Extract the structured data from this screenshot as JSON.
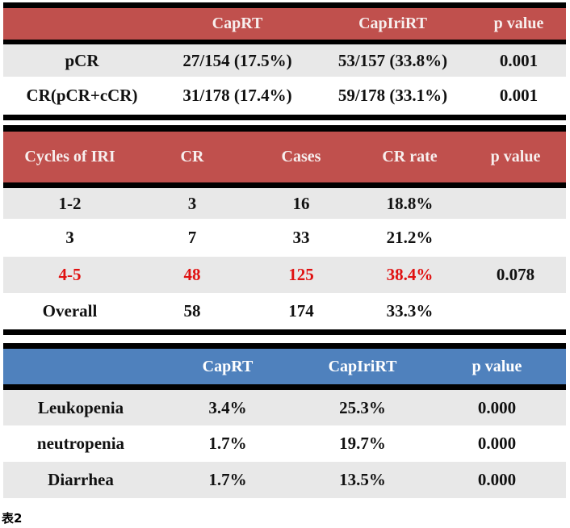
{
  "page": {
    "caption": "表2"
  },
  "colors": {
    "red-header-bg": "#c0504d",
    "blue-header-bg": "#4f81bd",
    "shaded-row-bg": "#e8e8e8",
    "highlight-text": "#e01111",
    "header-text": "#f7efee",
    "body-text": "#111111",
    "border": "#000000"
  },
  "tables": [
    {
      "title": "complete-response-rates",
      "header": [
        "",
        "CapRT",
        "CapIriRT",
        "p value"
      ],
      "rows": [
        {
          "cells": [
            "pCR",
            "27/154 (17.5%)",
            "53/157 (33.8%)",
            "0.001"
          ]
        },
        {
          "cells": [
            "CR(pCR+cCR)",
            "31/178 (17.4%)",
            "59/178 (33.1%)",
            "0.001"
          ]
        }
      ]
    },
    {
      "title": "cycles-of-iri",
      "header": [
        "Cycles of IRI",
        "CR",
        "Cases",
        "CR rate",
        "p value"
      ],
      "rows": [
        {
          "cells": [
            "1-2",
            "3",
            "16",
            "18.8%",
            ""
          ]
        },
        {
          "cells": [
            "3",
            "7",
            "33",
            "21.2%",
            ""
          ]
        },
        {
          "cells": [
            "4-5",
            "48",
            "125",
            "38.4%",
            "0.078"
          ],
          "highlight": true
        },
        {
          "cells": [
            "Overall",
            "58",
            "174",
            "33.3%",
            ""
          ]
        }
      ]
    },
    {
      "title": "toxicity",
      "header": [
        "",
        "CapRT",
        "CapIriRT",
        "p value"
      ],
      "rows": [
        {
          "cells": [
            "Leukopenia",
            "3.4%",
            "25.3%",
            "0.000"
          ]
        },
        {
          "cells": [
            "neutropenia",
            "1.7%",
            "19.7%",
            "0.000"
          ]
        },
        {
          "cells": [
            "Diarrhea",
            "1.7%",
            "13.5%",
            "0.000"
          ]
        }
      ]
    }
  ],
  "chart_data": [
    {
      "type": "table",
      "title": "Complete response rates",
      "columns": [
        "",
        "CapRT",
        "CapIriRT",
        "p value"
      ],
      "rows": [
        [
          "pCR",
          "27/154 (17.5%)",
          "53/157 (33.8%)",
          "0.001"
        ],
        [
          "CR(pCR+cCR)",
          "31/178 (17.4%)",
          "59/178 (33.1%)",
          "0.001"
        ]
      ]
    },
    {
      "type": "table",
      "title": "CR by cycles of IRI",
      "columns": [
        "Cycles of IRI",
        "CR",
        "Cases",
        "CR rate",
        "p value"
      ],
      "rows": [
        [
          "1-2",
          3,
          16,
          "18.8%",
          ""
        ],
        [
          "3",
          7,
          33,
          "21.2%",
          ""
        ],
        [
          "4-5",
          48,
          125,
          "38.4%",
          "0.078"
        ],
        [
          "Overall",
          58,
          174,
          "33.3%",
          ""
        ]
      ]
    },
    {
      "type": "table",
      "title": "Toxicity",
      "columns": [
        "",
        "CapRT",
        "CapIriRT",
        "p value"
      ],
      "rows": [
        [
          "Leukopenia",
          "3.4%",
          "25.3%",
          "0.000"
        ],
        [
          "neutropenia",
          "1.7%",
          "19.7%",
          "0.000"
        ],
        [
          "Diarrhea",
          "1.7%",
          "13.5%",
          "0.000"
        ]
      ]
    }
  ]
}
